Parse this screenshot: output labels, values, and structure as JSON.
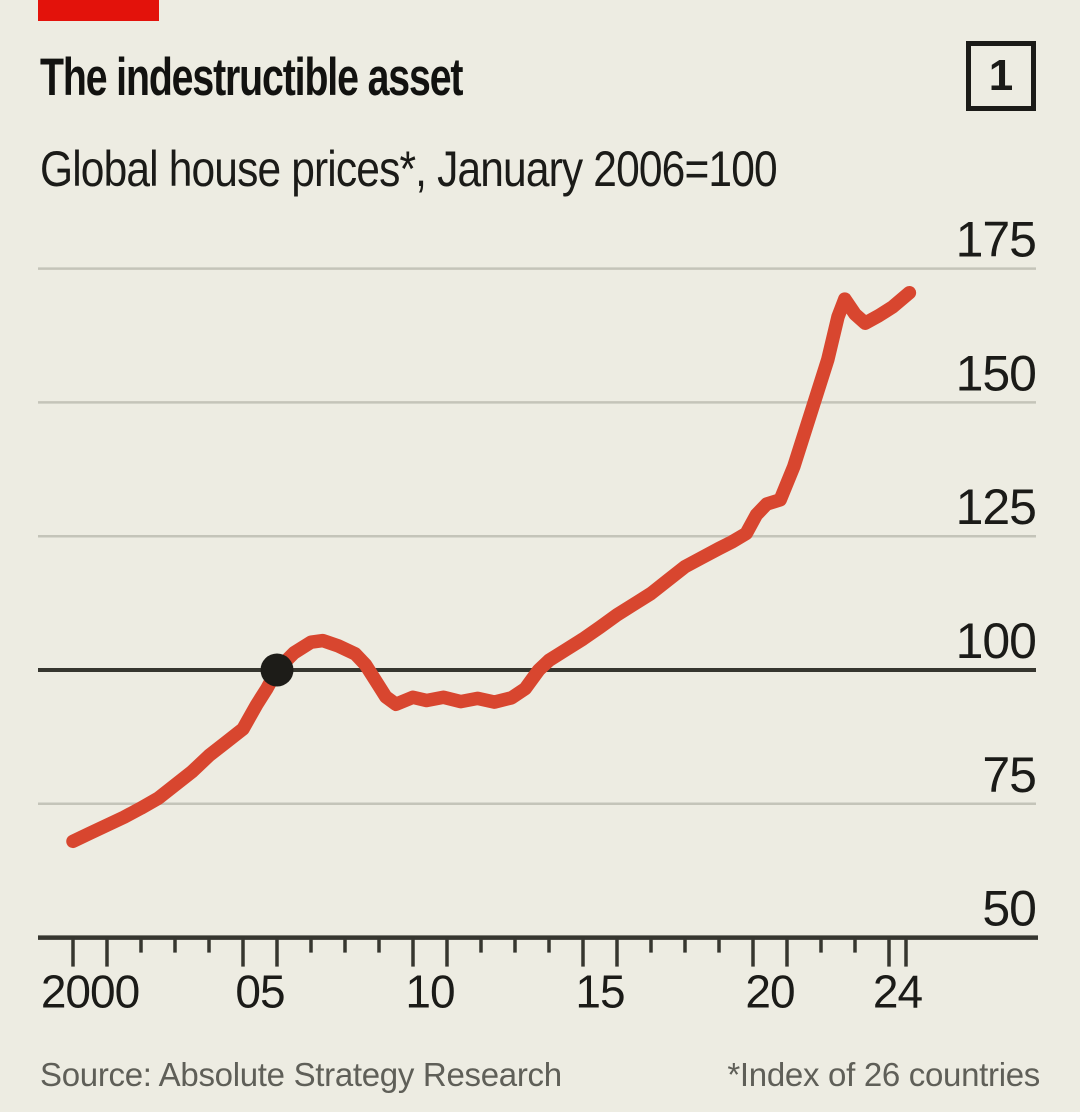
{
  "header": {
    "title": "The indestructible asset",
    "subtitle": "Global house prices*, January 2006=100",
    "chart_number": "1"
  },
  "footer": {
    "source": "Source: Absolute Strategy Research",
    "footnote": "*Index of 26 countries"
  },
  "colors": {
    "background": "#edece2",
    "brand_red_tab": "#e3120b",
    "line_red": "#d8462f",
    "gridline": "#c4c4b9",
    "dark_line": "#36362f",
    "marker_dot": "#1d1c18",
    "text": "#1b1b18",
    "muted_text": "#5f5f58"
  },
  "chart_data": {
    "type": "line",
    "title": "The indestructible asset",
    "subtitle": "Global house prices*, January 2006=100",
    "grid": "horizontal",
    "xlim": [
      2000,
      2024.6
    ],
    "ylim": [
      50,
      180
    ],
    "yticks": [
      50,
      75,
      100,
      125,
      150,
      175
    ],
    "baseline_value": 100,
    "xtick_years_minor": [
      2000,
      2001,
      2002,
      2003,
      2004,
      2005,
      2006,
      2007,
      2008,
      2009,
      2010,
      2011,
      2012,
      2013,
      2014,
      2015,
      2016,
      2017,
      2018,
      2019,
      2020,
      2021,
      2022,
      2023,
      2024,
      2024.5
    ],
    "xtick_years_long": [
      2000,
      2001,
      2005,
      2006,
      2010,
      2011,
      2015,
      2016,
      2020,
      2021,
      2024,
      2024.5
    ],
    "xtick_labels": [
      {
        "year": 2000,
        "label": "2000"
      },
      {
        "year": 2005,
        "label": "05"
      },
      {
        "year": 2010,
        "label": "10"
      },
      {
        "year": 2015,
        "label": "15"
      },
      {
        "year": 2020,
        "label": "20"
      },
      {
        "year": 2024,
        "label": "24"
      }
    ],
    "marker": {
      "year": 2006,
      "value": 100,
      "meaning": "January 2006 = 100 reference dot"
    },
    "series": [
      {
        "name": "Global house price index (26 countries)",
        "color": "#d8462f",
        "points": [
          [
            2000.0,
            68.0
          ],
          [
            2000.5,
            69.5
          ],
          [
            2001.0,
            71.0
          ],
          [
            2001.5,
            72.5
          ],
          [
            2002.0,
            74.2
          ],
          [
            2002.5,
            76.0
          ],
          [
            2003.0,
            78.5
          ],
          [
            2003.5,
            81.0
          ],
          [
            2004.0,
            84.0
          ],
          [
            2004.5,
            86.5
          ],
          [
            2005.0,
            89.0
          ],
          [
            2005.4,
            93.5
          ],
          [
            2005.7,
            96.5
          ],
          [
            2006.0,
            100.0
          ],
          [
            2006.5,
            103.2
          ],
          [
            2007.0,
            105.2
          ],
          [
            2007.35,
            105.5
          ],
          [
            2007.8,
            104.5
          ],
          [
            2008.3,
            103.0
          ],
          [
            2008.6,
            101.0
          ],
          [
            2008.9,
            98.0
          ],
          [
            2009.2,
            95.0
          ],
          [
            2009.5,
            93.6
          ],
          [
            2010.0,
            94.9
          ],
          [
            2010.4,
            94.3
          ],
          [
            2010.9,
            94.9
          ],
          [
            2011.4,
            94.1
          ],
          [
            2011.9,
            94.7
          ],
          [
            2012.4,
            94.0
          ],
          [
            2012.9,
            94.8
          ],
          [
            2013.3,
            96.5
          ],
          [
            2013.7,
            100.0
          ],
          [
            2014.0,
            101.8
          ],
          [
            2014.5,
            103.8
          ],
          [
            2015.0,
            105.8
          ],
          [
            2015.5,
            108.0
          ],
          [
            2016.0,
            110.3
          ],
          [
            2016.5,
            112.3
          ],
          [
            2017.0,
            114.3
          ],
          [
            2017.5,
            116.8
          ],
          [
            2018.0,
            119.3
          ],
          [
            2018.5,
            121.0
          ],
          [
            2019.0,
            122.7
          ],
          [
            2019.4,
            124.0
          ],
          [
            2019.8,
            125.5
          ],
          [
            2020.1,
            129.0
          ],
          [
            2020.4,
            131.0
          ],
          [
            2020.8,
            131.8
          ],
          [
            2021.2,
            138.0
          ],
          [
            2021.8,
            150.0
          ],
          [
            2022.2,
            158.0
          ],
          [
            2022.5,
            166.0
          ],
          [
            2022.7,
            169.3
          ],
          [
            2023.0,
            166.5
          ],
          [
            2023.3,
            164.8
          ],
          [
            2023.7,
            166.2
          ],
          [
            2024.1,
            167.8
          ],
          [
            2024.6,
            170.5
          ]
        ]
      }
    ]
  }
}
